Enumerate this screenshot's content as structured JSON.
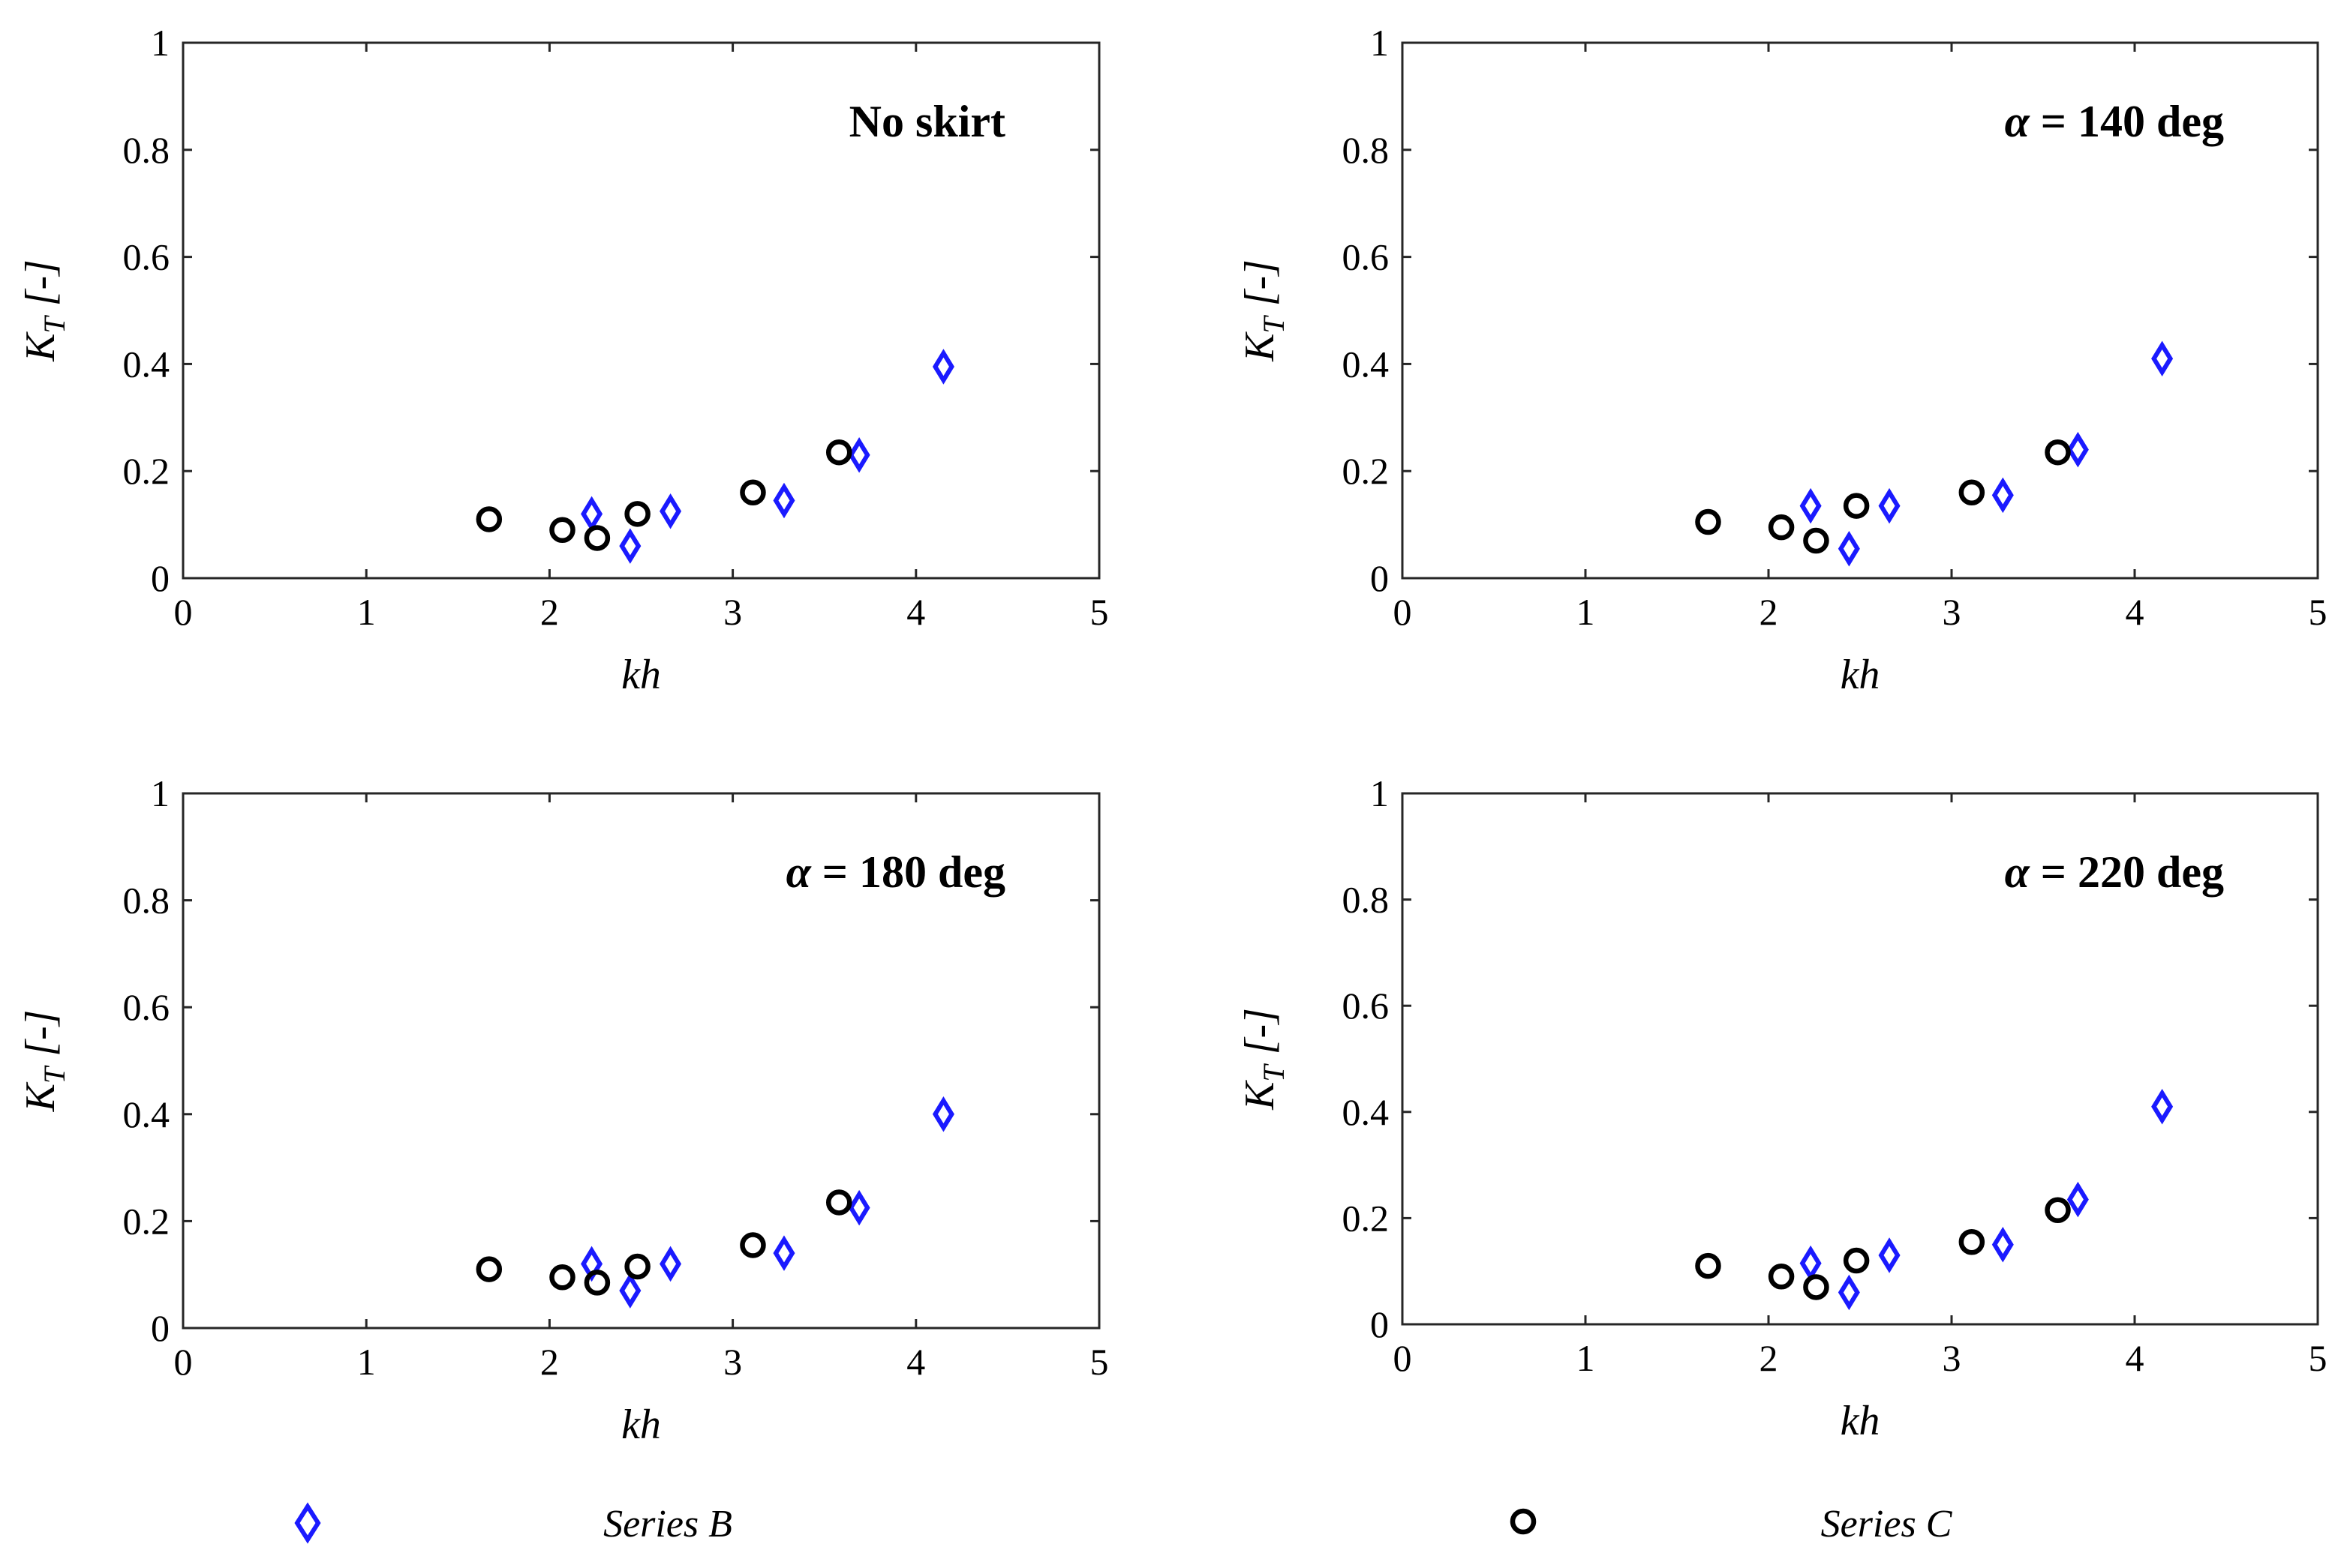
{
  "colors": {
    "series_b": "#1a1aff",
    "series_c": "#000000",
    "axes": "#262626"
  },
  "legend": {
    "placement": "bottom",
    "entries": [
      {
        "label": "Series B",
        "marker": "diamond",
        "color": "#1a1aff"
      },
      {
        "label": "Series C",
        "marker": "circle",
        "color": "#000000"
      }
    ]
  },
  "chart_data": [
    {
      "type": "scatter",
      "annotation": "No skirt",
      "xlabel": "kh",
      "ylabel": {
        "main": "K",
        "sub": "T",
        "unit": " [-]"
      },
      "xlim": [
        0,
        5
      ],
      "ylim": [
        0,
        1
      ],
      "xticks": [
        "0",
        "1",
        "2",
        "3",
        "4",
        "5"
      ],
      "yticks": [
        "0",
        "0.2",
        "0.4",
        "0.6",
        "0.8",
        "1"
      ],
      "grid": false,
      "series": [
        {
          "name": "Series B",
          "x": [
            2.23,
            2.44,
            2.66,
            3.28,
            3.69,
            4.15
          ],
          "y": [
            0.12,
            0.06,
            0.125,
            0.145,
            0.23,
            0.395
          ]
        },
        {
          "name": "Series C",
          "x": [
            1.67,
            2.07,
            2.26,
            2.48,
            3.11,
            3.58
          ],
          "y": [
            0.11,
            0.09,
            0.075,
            0.12,
            0.16,
            0.235
          ]
        }
      ]
    },
    {
      "type": "scatter",
      "annotation": "α = 140 deg",
      "xlabel": "kh",
      "ylabel": {
        "main": "K",
        "sub": "T",
        "unit": " [-]"
      },
      "xlim": [
        0,
        5
      ],
      "ylim": [
        0,
        1
      ],
      "xticks": [
        "0",
        "1",
        "2",
        "3",
        "4",
        "5"
      ],
      "yticks": [
        "0",
        "0.2",
        "0.4",
        "0.6",
        "0.8",
        "1"
      ],
      "grid": false,
      "series": [
        {
          "name": "Series B",
          "x": [
            2.23,
            2.44,
            2.66,
            3.28,
            3.69,
            4.15
          ],
          "y": [
            0.135,
            0.055,
            0.135,
            0.155,
            0.24,
            0.41
          ]
        },
        {
          "name": "Series C",
          "x": [
            1.67,
            2.07,
            2.26,
            2.48,
            3.11,
            3.58
          ],
          "y": [
            0.105,
            0.095,
            0.07,
            0.135,
            0.16,
            0.235
          ]
        }
      ]
    },
    {
      "type": "scatter",
      "annotation": "α = 180 deg",
      "xlabel": "kh",
      "ylabel": {
        "main": "K",
        "sub": "T",
        "unit": " [-]"
      },
      "xlim": [
        0,
        5
      ],
      "ylim": [
        0,
        1
      ],
      "xticks": [
        "0",
        "1",
        "2",
        "3",
        "4",
        "5"
      ],
      "yticks": [
        "0",
        "0.2",
        "0.4",
        "0.6",
        "0.8",
        "1"
      ],
      "grid": false,
      "series": [
        {
          "name": "Series B",
          "x": [
            2.23,
            2.44,
            2.66,
            3.28,
            3.69,
            4.15
          ],
          "y": [
            0.12,
            0.07,
            0.12,
            0.14,
            0.225,
            0.4
          ]
        },
        {
          "name": "Series C",
          "x": [
            1.67,
            2.07,
            2.26,
            2.48,
            3.11,
            3.58
          ],
          "y": [
            0.11,
            0.095,
            0.085,
            0.115,
            0.155,
            0.235
          ]
        }
      ]
    },
    {
      "type": "scatter",
      "annotation": "α = 220 deg",
      "xlabel": "kh",
      "ylabel": {
        "main": "K",
        "sub": "T",
        "unit": " [-]"
      },
      "xlim": [
        0,
        5
      ],
      "ylim": [
        0,
        1
      ],
      "xticks": [
        "0",
        "1",
        "2",
        "3",
        "4",
        "5"
      ],
      "yticks": [
        "0",
        "0.2",
        "0.4",
        "0.6",
        "0.8",
        "1"
      ],
      "grid": false,
      "series": [
        {
          "name": "Series B",
          "x": [
            2.23,
            2.44,
            2.66,
            3.28,
            3.69,
            4.15
          ],
          "y": [
            0.115,
            0.06,
            0.13,
            0.15,
            0.235,
            0.41
          ]
        },
        {
          "name": "Series C",
          "x": [
            1.67,
            2.07,
            2.26,
            2.48,
            3.11,
            3.58
          ],
          "y": [
            0.11,
            0.09,
            0.07,
            0.12,
            0.155,
            0.215
          ]
        }
      ]
    }
  ]
}
